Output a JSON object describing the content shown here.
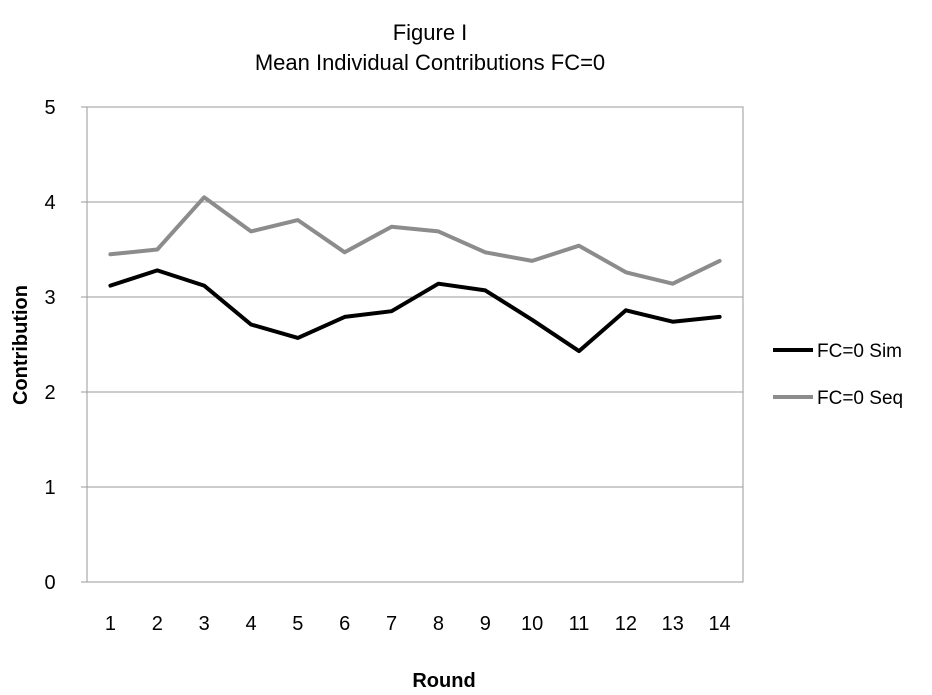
{
  "chart_data": {
    "type": "line",
    "title": "Figure I",
    "subtitle": "Mean Individual Contributions FC=0",
    "xlabel": "Round",
    "ylabel": "Contribution",
    "categories": [
      "1",
      "2",
      "3",
      "4",
      "5",
      "6",
      "7",
      "8",
      "9",
      "10",
      "11",
      "12",
      "13",
      "14"
    ],
    "ylim": [
      0,
      5
    ],
    "yticks": [
      "0",
      "1",
      "2",
      "3",
      "4",
      "5"
    ],
    "grid": true,
    "legend_position": "right",
    "series": [
      {
        "name": "FC=0 Sim",
        "color": "#000000",
        "values": [
          3.12,
          3.28,
          3.12,
          2.71,
          2.57,
          2.79,
          2.85,
          3.14,
          3.07,
          2.76,
          2.43,
          2.86,
          2.74,
          2.79
        ]
      },
      {
        "name": "FC=0 Seq",
        "color": "#8c8c8c",
        "values": [
          3.45,
          3.5,
          4.05,
          3.69,
          3.81,
          3.47,
          3.74,
          3.69,
          3.47,
          3.38,
          3.54,
          3.26,
          3.14,
          3.38
        ]
      }
    ]
  }
}
